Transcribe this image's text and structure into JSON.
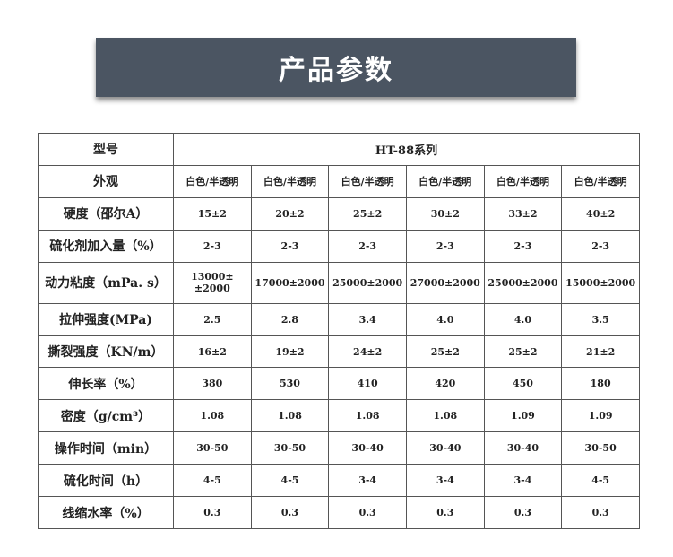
{
  "title": "产品参数",
  "model_label": "型号",
  "series": "HT-88系列",
  "rows": [
    {
      "label": "外观",
      "values": [
        "白色/半透明",
        "白色/半透明",
        "白色/半透明",
        "白色/半透明",
        "白色/半透明",
        "白色/半透明"
      ]
    },
    {
      "label": "硬度（邵尔A）",
      "values": [
        "15±2",
        "20±2",
        "25±2",
        "30±2",
        "33±2",
        "40±2"
      ]
    },
    {
      "label": "硫化剂加入量（%）",
      "values": [
        "2-3",
        "2-3",
        "2-3",
        "2-3",
        "2-3",
        "2-3"
      ]
    },
    {
      "label": "动力粘度（mPa. s）",
      "values": [
        "13000±±2000",
        "17000±2000",
        "25000±2000",
        "27000±2000",
        "25000±2000",
        "15000±2000"
      ]
    },
    {
      "label": "拉伸强度(MPa)",
      "values": [
        "2.5",
        "2.8",
        "3.4",
        "4.0",
        "4.0",
        "3.5"
      ]
    },
    {
      "label": "撕裂强度（KN/m）",
      "values": [
        "16±2",
        "19±2",
        "24±2",
        "25±2",
        "25±2",
        "21±2"
      ]
    },
    {
      "label": "伸长率（%）",
      "values": [
        "380",
        "530",
        "410",
        "420",
        "450",
        "180"
      ]
    },
    {
      "label": "密度（g/cm³）",
      "values": [
        "1.08",
        "1.08",
        "1.08",
        "1.08",
        "1.09",
        "1.09"
      ]
    },
    {
      "label": "操作时间（min）",
      "values": [
        "30-50",
        "30-50",
        "30-40",
        "30-40",
        "30-40",
        "30-50"
      ]
    },
    {
      "label": "硫化时间（h）",
      "values": [
        "4-5",
        "4-5",
        "3-4",
        "3-4",
        "3-4",
        "4-5"
      ]
    },
    {
      "label": "线缩水率（%）",
      "values": [
        "0.3",
        "0.3",
        "0.3",
        "0.3",
        "0.3",
        "0.3"
      ]
    }
  ]
}
